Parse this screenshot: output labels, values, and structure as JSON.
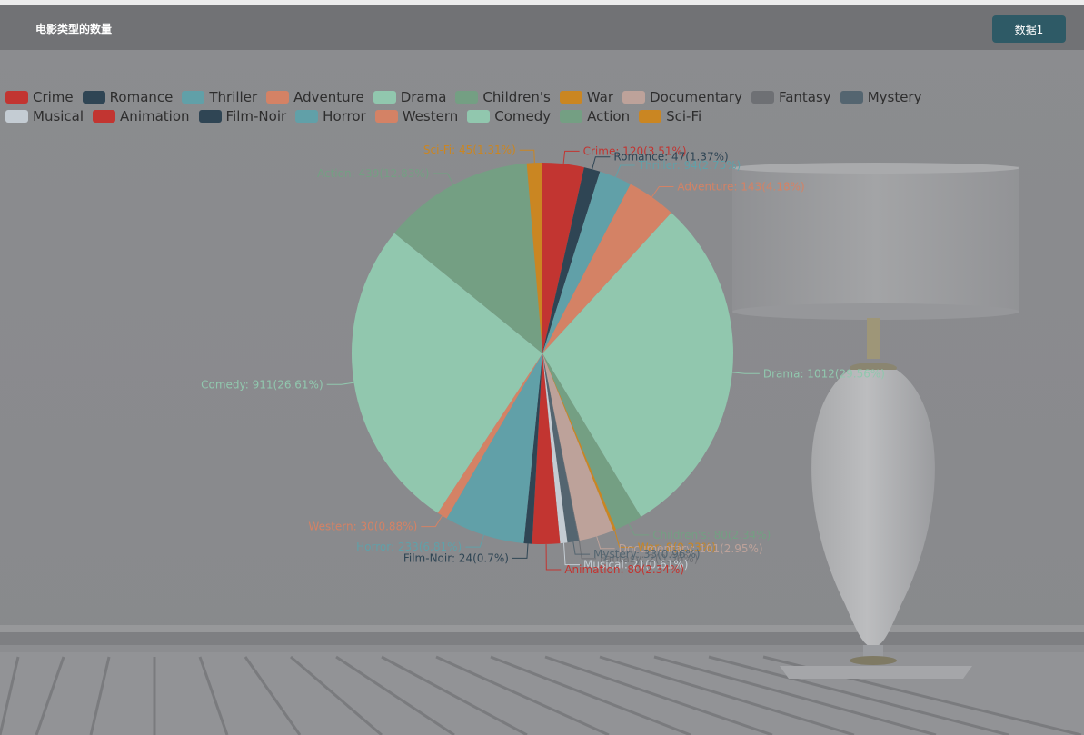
{
  "header": {
    "title": "电影类型的数量",
    "data_button_label": "数据1"
  },
  "colors": {
    "header_bg": "#717275",
    "button_bg": "#2e5a66"
  },
  "chart_data": {
    "type": "pie",
    "title": "电影类型的数量",
    "start_angle_deg": 90,
    "clockwise": true,
    "legend_position": "top-left",
    "slices": [
      {
        "name": "Crime",
        "value": 120,
        "percent": "3.51%",
        "color": "#c23531"
      },
      {
        "name": "Romance",
        "value": 47,
        "percent": "1.37%",
        "color": "#2f4554"
      },
      {
        "name": "Thriller",
        "value": 94,
        "percent": "2.75%",
        "color": "#61a0a8"
      },
      {
        "name": "Adventure",
        "value": 143,
        "percent": "4.18%",
        "color": "#d48265"
      },
      {
        "name": "Drama",
        "value": 1012,
        "percent": "29.56%",
        "color": "#91c7ae"
      },
      {
        "name": "Children's",
        "value": 80,
        "percent": "2.34%",
        "color": "#749f83"
      },
      {
        "name": "War",
        "value": 8,
        "percent": "0.23%",
        "color": "#ca8622"
      },
      {
        "name": "Documentary",
        "value": 101,
        "percent": "2.95%",
        "color": "#bda29a"
      },
      {
        "name": "Fantasy",
        "value": 2,
        "percent": "0.06%",
        "color": "#6e7074"
      },
      {
        "name": "Mystery",
        "value": 33,
        "percent": "0.96%",
        "color": "#546570"
      },
      {
        "name": "Musical",
        "value": 21,
        "percent": "0.61%",
        "color": "#c4ccd3"
      },
      {
        "name": "Animation",
        "value": 80,
        "percent": "2.34%",
        "color": "#c23531"
      },
      {
        "name": "Film-Noir",
        "value": 24,
        "percent": "0.7%",
        "color": "#2f4554"
      },
      {
        "name": "Horror",
        "value": 233,
        "percent": "6.81%",
        "color": "#61a0a8"
      },
      {
        "name": "Western",
        "value": 30,
        "percent": "0.88%",
        "color": "#d48265"
      },
      {
        "name": "Comedy",
        "value": 911,
        "percent": "26.61%",
        "color": "#91c7ae"
      },
      {
        "name": "Action",
        "value": 439,
        "percent": "12.83%",
        "color": "#749f83"
      },
      {
        "name": "Sci-Fi",
        "value": 45,
        "percent": "1.31%",
        "color": "#ca8622"
      }
    ]
  }
}
